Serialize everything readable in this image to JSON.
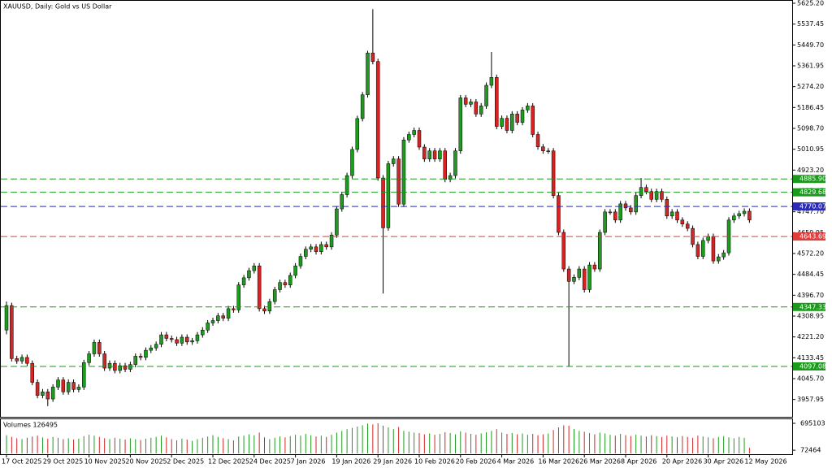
{
  "chart_data": {
    "type": "candlestick",
    "title": "XAUUSD, Daily:  Gold vs US Dollar",
    "categories": [
      "17 Oct 2025",
      null,
      null,
      null,
      null,
      null,
      null,
      null,
      "29 Oct 2025",
      null,
      null,
      null,
      null,
      null,
      null,
      null,
      "10 Nov 2025",
      null,
      null,
      null,
      null,
      null,
      null,
      null,
      "20 Nov 2025",
      null,
      null,
      null,
      null,
      null,
      null,
      null,
      "2 Dec 2025",
      null,
      null,
      null,
      null,
      null,
      null,
      null,
      "12 Dec 2025",
      null,
      null,
      null,
      null,
      null,
      null,
      null,
      "24 Dec 2025",
      null,
      null,
      null,
      null,
      null,
      null,
      null,
      "7 Jan 2026",
      null,
      null,
      null,
      null,
      null,
      null,
      null,
      "19 Jan 2026",
      null,
      null,
      null,
      null,
      null,
      null,
      null,
      "29 Jan 2026",
      null,
      null,
      null,
      null,
      null,
      null,
      null,
      "10 Feb 2026",
      null,
      null,
      null,
      null,
      null,
      null,
      null,
      "20 Feb 2026",
      null,
      null,
      null,
      null,
      null,
      null,
      null,
      "4 Mar 2026",
      null,
      null,
      null,
      null,
      null,
      null,
      null,
      "16 Mar 2026",
      null,
      null,
      null,
      null,
      null,
      null,
      null,
      "26 Mar 2026",
      null,
      null,
      null,
      null,
      null,
      null,
      null,
      "8 Apr 2026",
      null,
      null,
      null,
      null,
      null,
      null,
      null,
      "20 Apr 2026",
      null,
      null,
      null,
      null,
      null,
      null,
      null,
      "30 Apr 2026",
      null,
      null,
      null,
      null,
      null,
      null,
      null,
      "12 May 2026"
    ],
    "open": [
      4250,
      4353,
      4130,
      4120,
      4135,
      4110,
      4030,
      3975,
      3990,
      3960,
      4010,
      4040,
      3990,
      4030,
      4000,
      4010,
      4113,
      4150,
      4198,
      4150,
      4090,
      4110,
      4080,
      4100,
      4085,
      4105,
      4140,
      4135,
      4165,
      4175,
      4190,
      4230,
      4215,
      4210,
      4195,
      4220,
      4200,
      4205,
      4230,
      4250,
      4280,
      4290,
      4310,
      4300,
      4340,
      4335,
      4440,
      4470,
      4500,
      4520,
      4340,
      4330,
      4370,
      4420,
      4450,
      4440,
      4480,
      4520,
      4560,
      4590,
      4600,
      4580,
      4610,
      4600,
      4650,
      4760,
      4820,
      4900,
      5010,
      5140,
      5240,
      5416,
      5380,
      4890,
      4680,
      4950,
      4970,
      4780,
      5050,
      5073,
      5090,
      5020,
      4970,
      5004,
      4970,
      5004,
      4884,
      4900,
      5004,
      5227,
      5200,
      5210,
      5159,
      5193,
      5280,
      5313,
      5107,
      5141,
      5090,
      5159,
      5124,
      5176,
      5193,
      5073,
      5021,
      5004,
      5004,
      4816,
      4661,
      4507,
      4455,
      4472,
      4507,
      4420,
      4524,
      4507,
      4661,
      4747,
      4747,
      4713,
      4781,
      4764,
      4747,
      4816,
      4850,
      4833,
      4800,
      4833,
      4800,
      4730,
      4747,
      4713,
      4696,
      4678,
      4610,
      4560,
      4627,
      4644,
      4541,
      4558,
      4575,
      4713,
      4730,
      4740,
      4750
    ],
    "high": [
      4370,
      4365,
      4142,
      4147,
      4147,
      4122,
      4042,
      4002,
      4002,
      4022,
      4052,
      4052,
      4042,
      4042,
      4022,
      4125,
      4162,
      4210,
      4210,
      4162,
      4122,
      4122,
      4112,
      4112,
      4117,
      4152,
      4152,
      4177,
      4187,
      4202,
      4242,
      4242,
      4227,
      4222,
      4232,
      4232,
      4217,
      4242,
      4262,
      4292,
      4302,
      4322,
      4322,
      4352,
      4352,
      4452,
      4482,
      4512,
      4532,
      4532,
      4352,
      4382,
      4432,
      4462,
      4462,
      4492,
      4532,
      4572,
      4602,
      4612,
      4612,
      4622,
      4622,
      4662,
      4772,
      4832,
      4912,
      5022,
      5152,
      5252,
      5425,
      5600,
      5392,
      4902,
      4962,
      4982,
      4982,
      5062,
      5085,
      5102,
      5102,
      5032,
      5016,
      5016,
      5016,
      5016,
      4912,
      5016,
      5239,
      5239,
      5222,
      5222,
      5205,
      5292,
      5420,
      5325,
      5153,
      5153,
      5171,
      5171,
      5188,
      5205,
      5205,
      5085,
      5033,
      5016,
      5016,
      4828,
      4673,
      4519,
      4484,
      4519,
      4519,
      4536,
      4536,
      4673,
      4759,
      4759,
      4759,
      4793,
      4793,
      4776,
      4828,
      4890,
      4862,
      4845,
      4845,
      4845,
      4812,
      4759,
      4759,
      4725,
      4708,
      4690,
      4622,
      4639,
      4656,
      4656,
      4570,
      4587,
      4725,
      4742,
      4752,
      4762,
      4762
    ],
    "low": [
      4232,
      4118,
      4108,
      4108,
      4098,
      4018,
      3963,
      3963,
      3930,
      3948,
      3998,
      3978,
      3978,
      3988,
      3988,
      3998,
      4101,
      4138,
      4138,
      4078,
      4078,
      4068,
      4068,
      4073,
      4073,
      4093,
      4123,
      4123,
      4153,
      4163,
      4178,
      4203,
      4198,
      4183,
      4183,
      4188,
      4188,
      4193,
      4218,
      4238,
      4268,
      4278,
      4288,
      4288,
      4323,
      4323,
      4428,
      4458,
      4488,
      4328,
      4318,
      4318,
      4358,
      4408,
      4428,
      4428,
      4468,
      4508,
      4548,
      4578,
      4568,
      4568,
      4588,
      4588,
      4638,
      4748,
      4808,
      4888,
      4998,
      5128,
      5228,
      5368,
      4878,
      4404,
      4668,
      4938,
      4768,
      4768,
      5038,
      5061,
      5008,
      4958,
      4958,
      4958,
      4958,
      4872,
      4872,
      4888,
      4992,
      5188,
      5188,
      5147,
      5147,
      5181,
      5268,
      5095,
      5095,
      5078,
      5078,
      5112,
      5112,
      5164,
      5061,
      5009,
      4992,
      4992,
      4804,
      4649,
      4495,
      4095,
      4443,
      4460,
      4408,
      4408,
      4495,
      4495,
      4649,
      4735,
      4701,
      4701,
      4752,
      4735,
      4735,
      4804,
      4821,
      4788,
      4788,
      4788,
      4718,
      4718,
      4701,
      4684,
      4666,
      4598,
      4548,
      4548,
      4615,
      4529,
      4529,
      4546,
      4563,
      4701,
      4718,
      4728,
      4701
    ],
    "close": [
      4353,
      4130,
      4120,
      4135,
      4110,
      4030,
      3975,
      3990,
      3960,
      4010,
      4040,
      3990,
      4030,
      4000,
      4010,
      4113,
      4150,
      4198,
      4150,
      4090,
      4110,
      4080,
      4100,
      4085,
      4105,
      4140,
      4135,
      4165,
      4175,
      4190,
      4230,
      4215,
      4210,
      4195,
      4220,
      4200,
      4205,
      4230,
      4250,
      4280,
      4290,
      4310,
      4300,
      4340,
      4335,
      4440,
      4470,
      4500,
      4520,
      4340,
      4330,
      4370,
      4420,
      4450,
      4440,
      4480,
      4520,
      4560,
      4590,
      4600,
      4580,
      4610,
      4600,
      4650,
      4760,
      4820,
      4900,
      5010,
      5140,
      5240,
      5416,
      5380,
      4890,
      4680,
      4950,
      4970,
      4780,
      5050,
      5073,
      5090,
      5020,
      4970,
      5004,
      4970,
      5004,
      4884,
      4900,
      5004,
      5227,
      5200,
      5210,
      5159,
      5193,
      5280,
      5313,
      5107,
      5141,
      5090,
      5159,
      5124,
      5176,
      5193,
      5073,
      5021,
      5004,
      5004,
      4816,
      4661,
      4507,
      4455,
      4472,
      4507,
      4420,
      4524,
      4507,
      4661,
      4747,
      4747,
      4713,
      4781,
      4764,
      4747,
      4816,
      4850,
      4833,
      4800,
      4833,
      4800,
      4730,
      4747,
      4713,
      4696,
      4678,
      4610,
      4560,
      4627,
      4644,
      4541,
      4558,
      4575,
      4713,
      4730,
      4740,
      4750,
      4713
    ],
    "up_color": "#1e9a1e",
    "down_color": "#d42424",
    "ylim": [
      3885,
      5632
    ],
    "yticks": [
      {
        "value": 5625.2,
        "label": "5625.20"
      },
      5537.45,
      {
        "value": 5449.7,
        "label": "5449.70"
      },
      5361.95,
      {
        "value": 5274.2,
        "label": "5274.20"
      },
      5186.45,
      {
        "value": 5098.7,
        "label": "5098.70"
      },
      5010.95,
      {
        "value": 4923.2,
        "label": "4923.20"
      },
      4835.45,
      {
        "value": 4747.7,
        "label": "4747.70"
      },
      4659.95,
      {
        "value": 4572.2,
        "label": "4572.20"
      },
      4484.45,
      {
        "value": 4396.7,
        "label": "4396.70"
      },
      4308.95,
      {
        "value": 4221.2,
        "label": "4221.20"
      },
      4133.45,
      {
        "value": 4045.7,
        "label": "4045.70"
      },
      3957.95
    ],
    "levels": [
      {
        "value": 4885.9,
        "label": "4885.90",
        "color": "#1a9a1a"
      },
      {
        "value": 4829.68,
        "label": "4829.68",
        "color": "#1a9a1a"
      },
      {
        "value": 4770.07,
        "label": "4770.07",
        "color": "#2b2bb8"
      },
      {
        "value": 4643.69,
        "label": "4643.69",
        "color": "#e03c3c"
      },
      {
        "value": 4347.33,
        "label": "4347.33",
        "color": "#1a9a1a"
      },
      {
        "value": 4097.08,
        "label": "4097.08",
        "color": "#1a9a1a"
      }
    ],
    "volume": {
      "title": "Volumes 126495",
      "values": [
        420000,
        380000,
        350000,
        330000,
        360000,
        390000,
        410000,
        370000,
        340000,
        380000,
        360000,
        330000,
        350000,
        320000,
        340000,
        400000,
        430000,
        410000,
        380000,
        350000,
        330000,
        360000,
        340000,
        320000,
        350000,
        330000,
        310000,
        340000,
        360000,
        380000,
        410000,
        370000,
        330000,
        300000,
        340000,
        320000,
        290000,
        330000,
        360000,
        390000,
        420000,
        380000,
        350000,
        330000,
        300000,
        390000,
        410000,
        440000,
        420000,
        480000,
        370000,
        330000,
        360000,
        390000,
        370000,
        400000,
        430000,
        410000,
        450000,
        420000,
        390000,
        410000,
        380000,
        430000,
        480000,
        520000,
        560000,
        590000,
        620000,
        650000,
        690000,
        670000,
        695103,
        640000,
        600000,
        560000,
        610000,
        520000,
        500000,
        480000,
        470000,
        440000,
        460000,
        430000,
        450000,
        490000,
        470000,
        440000,
        510000,
        480000,
        450000,
        430000,
        460000,
        490000,
        520000,
        560000,
        480000,
        450000,
        470000,
        440000,
        460000,
        430000,
        450000,
        420000,
        440000,
        460000,
        540000,
        600000,
        650000,
        640000,
        560000,
        520000,
        500000,
        470000,
        440000,
        480000,
        460000,
        430000,
        410000,
        450000,
        420000,
        400000,
        430000,
        410000,
        390000,
        420000,
        400000,
        380000,
        410000,
        390000,
        370000,
        400000,
        380000,
        360000,
        410000,
        390000,
        370000,
        350000,
        380000,
        400000,
        370000,
        350000,
        380000,
        360000,
        126495
      ],
      "ylim": [
        0,
        770000
      ],
      "yticks": [
        695103,
        72464
      ]
    }
  }
}
